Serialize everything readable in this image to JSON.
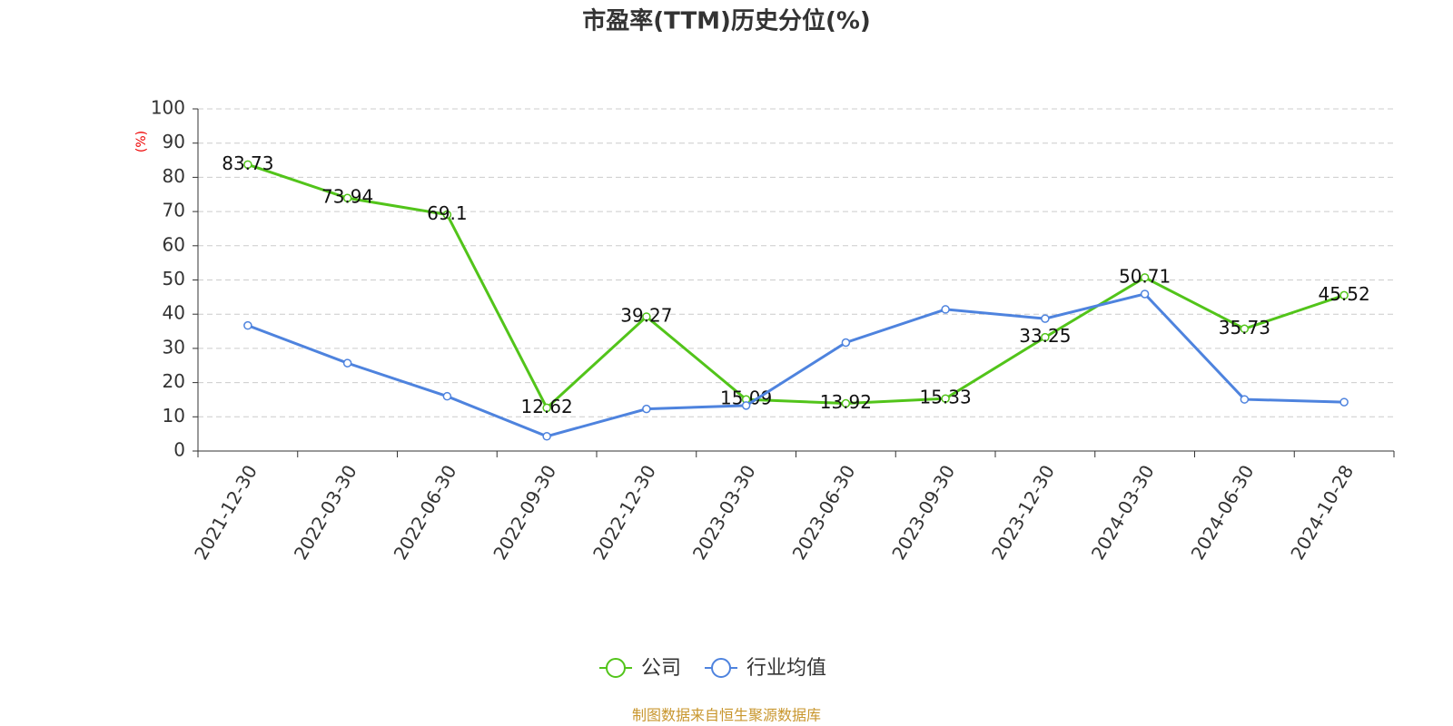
{
  "chart_data": {
    "type": "line",
    "title": "市盈率(TTM)历史分位(%)",
    "y_label": "(%)",
    "source": "制图数据来自恒生聚源数据库",
    "categories": [
      "2021-12-30",
      "2022-03-30",
      "2022-06-30",
      "2022-09-30",
      "2022-12-30",
      "2023-03-30",
      "2023-06-30",
      "2023-09-30",
      "2023-12-30",
      "2024-03-30",
      "2024-06-30",
      "2024-10-28"
    ],
    "series": [
      {
        "name": "公司",
        "color": "#52c41a",
        "labels": true,
        "values": [
          83.73,
          73.94,
          69.1,
          12.62,
          39.27,
          15.09,
          13.92,
          15.33,
          33.25,
          50.71,
          35.73,
          45.52
        ]
      },
      {
        "name": "行业均值",
        "color": "#4e83de",
        "labels": false,
        "values": [
          36.7,
          25.7,
          16.0,
          4.3,
          12.3,
          13.3,
          31.7,
          41.4,
          38.7,
          45.9,
          15.1,
          14.3
        ]
      }
    ],
    "ylim": [
      0,
      100
    ],
    "yticks": [
      0,
      10,
      20,
      30,
      40,
      50,
      60,
      70,
      80,
      90,
      100
    ],
    "grid": true
  }
}
